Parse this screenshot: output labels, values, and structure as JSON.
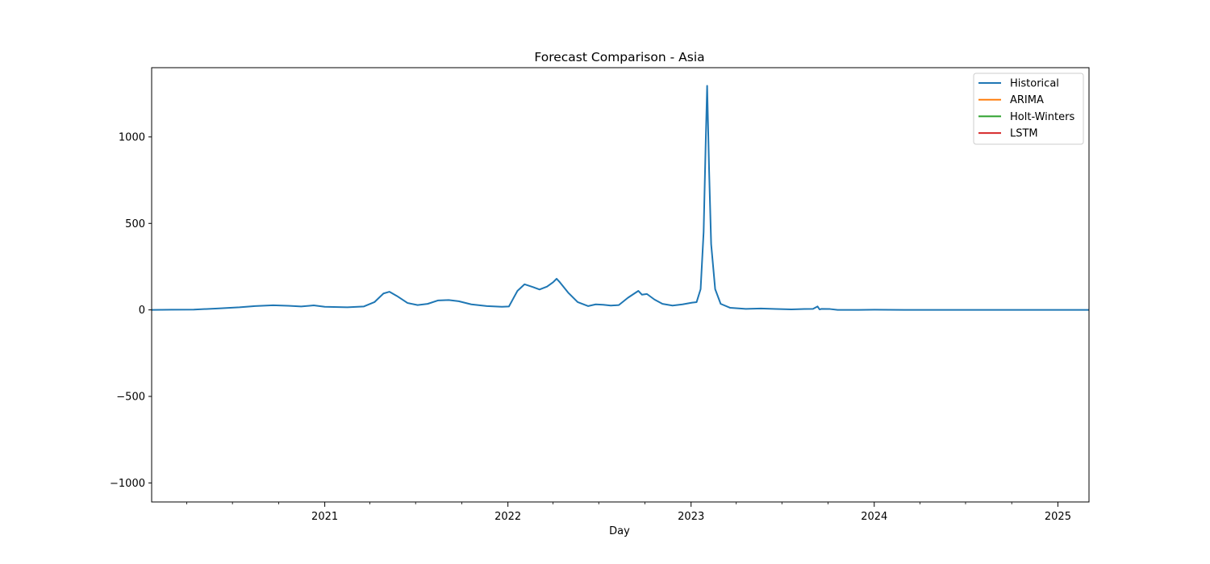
{
  "chart_data": {
    "type": "line",
    "title": "Forecast Comparison - Asia",
    "xlabel": "Day",
    "ylabel": "",
    "xlim": [
      "2020-01-22",
      "2025-03-04"
    ],
    "ylim": [
      -1110,
      1400
    ],
    "x_ticks": [
      "2021",
      "2022",
      "2023",
      "2024",
      "2025"
    ],
    "y_ticks": [
      1000,
      500,
      0,
      -500,
      -1000
    ],
    "y_tick_labels": [
      "1000",
      "500",
      "0",
      "−500",
      "−1000"
    ],
    "grid": false,
    "legend_position": "top-right",
    "series": [
      {
        "name": "Historical",
        "color": "#1f77b4",
        "points": [
          [
            "2020-01-22",
            0
          ],
          [
            "2020-03-01",
            1
          ],
          [
            "2020-04-15",
            2
          ],
          [
            "2020-06-01",
            8
          ],
          [
            "2020-07-15",
            15
          ],
          [
            "2020-08-15",
            22
          ],
          [
            "2020-09-20",
            27
          ],
          [
            "2020-10-20",
            24
          ],
          [
            "2020-11-15",
            20
          ],
          [
            "2020-12-10",
            26
          ],
          [
            "2021-01-01",
            18
          ],
          [
            "2021-02-15",
            15
          ],
          [
            "2021-03-20",
            20
          ],
          [
            "2021-04-10",
            45
          ],
          [
            "2021-04-28",
            95
          ],
          [
            "2021-05-10",
            105
          ],
          [
            "2021-05-25",
            80
          ],
          [
            "2021-06-15",
            40
          ],
          [
            "2021-07-05",
            28
          ],
          [
            "2021-07-25",
            35
          ],
          [
            "2021-08-15",
            55
          ],
          [
            "2021-09-05",
            57
          ],
          [
            "2021-09-25",
            50
          ],
          [
            "2021-10-20",
            32
          ],
          [
            "2021-11-20",
            22
          ],
          [
            "2021-12-20",
            18
          ],
          [
            "2022-01-03",
            20
          ],
          [
            "2022-01-20",
            110
          ],
          [
            "2022-02-03",
            148
          ],
          [
            "2022-02-20",
            132
          ],
          [
            "2022-03-05",
            118
          ],
          [
            "2022-03-20",
            135
          ],
          [
            "2022-04-01",
            160
          ],
          [
            "2022-04-08",
            180
          ],
          [
            "2022-04-15",
            158
          ],
          [
            "2022-05-01",
            100
          ],
          [
            "2022-05-20",
            45
          ],
          [
            "2022-06-10",
            22
          ],
          [
            "2022-06-25",
            32
          ],
          [
            "2022-07-10",
            30
          ],
          [
            "2022-07-25",
            25
          ],
          [
            "2022-08-10",
            28
          ],
          [
            "2022-08-28",
            70
          ],
          [
            "2022-09-10",
            95
          ],
          [
            "2022-09-18",
            110
          ],
          [
            "2022-09-25",
            88
          ],
          [
            "2022-10-05",
            92
          ],
          [
            "2022-10-20",
            60
          ],
          [
            "2022-11-05",
            35
          ],
          [
            "2022-11-25",
            25
          ],
          [
            "2022-12-15",
            32
          ],
          [
            "2023-01-03",
            42
          ],
          [
            "2023-01-12",
            45
          ],
          [
            "2023-01-20",
            120
          ],
          [
            "2023-01-26",
            450
          ],
          [
            "2023-01-30",
            950
          ],
          [
            "2023-02-02",
            1295
          ],
          [
            "2023-02-06",
            800
          ],
          [
            "2023-02-10",
            380
          ],
          [
            "2023-02-18",
            120
          ],
          [
            "2023-03-01",
            35
          ],
          [
            "2023-03-20",
            12
          ],
          [
            "2023-04-20",
            6
          ],
          [
            "2023-05-20",
            8
          ],
          [
            "2023-06-20",
            5
          ],
          [
            "2023-07-20",
            3
          ],
          [
            "2023-08-15",
            5
          ],
          [
            "2023-09-01",
            6
          ],
          [
            "2023-09-10",
            20
          ],
          [
            "2023-09-14",
            3
          ],
          [
            "2023-09-18",
            6
          ],
          [
            "2023-10-05",
            5
          ],
          [
            "2023-10-20",
            0
          ],
          [
            "2023-12-01",
            0
          ],
          [
            "2024-01-01",
            1
          ],
          [
            "2024-03-01",
            0
          ],
          [
            "2025-03-04",
            0
          ]
        ]
      },
      {
        "name": "ARIMA",
        "color": "#ff7f0e",
        "points": []
      },
      {
        "name": "Holt-Winters",
        "color": "#2ca02c",
        "points": []
      },
      {
        "name": "LSTM",
        "color": "#d62728",
        "points": []
      }
    ]
  }
}
